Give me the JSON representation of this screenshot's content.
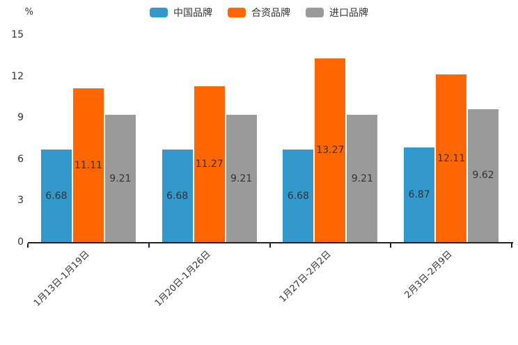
{
  "chart_data": {
    "type": "bar",
    "title": "",
    "xlabel": "",
    "ylabel": "%",
    "ylim": [
      0,
      15
    ],
    "yticks": [
      0,
      3,
      6,
      9,
      12,
      15
    ],
    "grid": false,
    "legend_position": "top",
    "value_labels": true,
    "categories": [
      "1月13日-1月19日",
      "1月20日-1月26日",
      "1月27日-2月2日",
      "2月3日-2月9日"
    ],
    "series": [
      {
        "name": "中国品牌",
        "color": "#3398cb",
        "values": [
          6.68,
          6.68,
          6.68,
          6.87
        ]
      },
      {
        "name": "合资品牌",
        "color": "#ff6600",
        "values": [
          11.11,
          11.27,
          13.27,
          12.11
        ]
      },
      {
        "name": "进口品牌",
        "color": "#9a9a9a",
        "values": [
          9.21,
          9.21,
          9.21,
          9.62
        ]
      }
    ]
  },
  "colors": {
    "axis": "#222222",
    "text": "#333333",
    "background": "#ffffff"
  }
}
